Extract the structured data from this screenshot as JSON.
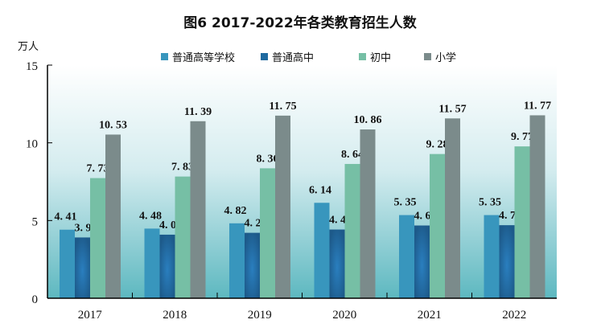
{
  "chart_data": {
    "type": "bar",
    "title": "图6   2017-2022年各类教育招生人数",
    "ylabel": "万人",
    "categories": [
      "2017",
      "2018",
      "2019",
      "2020",
      "2021",
      "2022"
    ],
    "ylim": [
      0,
      15
    ],
    "yticks": [
      0,
      5,
      10,
      15
    ],
    "grid": false,
    "legend_position": "top",
    "series": [
      {
        "name": "普通高等学校",
        "color": "#3896bd",
        "values": [
          4.41,
          4.48,
          4.82,
          6.14,
          5.35,
          5.35
        ]
      },
      {
        "name": "普通高中",
        "color": "#1f6aa0",
        "values": [
          3.91,
          4.09,
          4.21,
          4.42,
          4.68,
          4.7
        ]
      },
      {
        "name": "初中",
        "color": "#76bfa5",
        "values": [
          7.73,
          7.83,
          8.36,
          8.64,
          9.28,
          9.77
        ]
      },
      {
        "name": "小学",
        "color": "#7b8b8b",
        "values": [
          10.53,
          11.39,
          11.75,
          10.86,
          11.57,
          11.77
        ]
      }
    ]
  }
}
